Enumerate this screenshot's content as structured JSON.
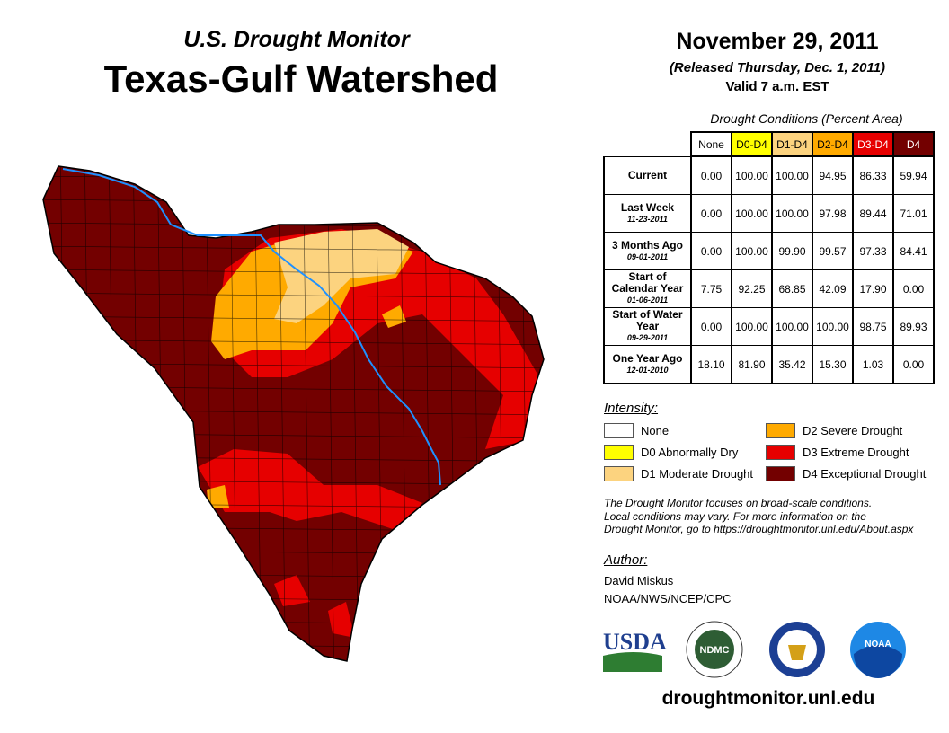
{
  "header": {
    "subtitle": "U.S. Drought Monitor",
    "title": "Texas-Gulf Watershed",
    "date": "November 29, 2011",
    "released": "(Released Thursday, Dec. 1, 2011)",
    "valid": "Valid 7 a.m. EST"
  },
  "table": {
    "caption": "Drought Conditions (Percent Area)",
    "columns": [
      "None",
      "D0-D4",
      "D1-D4",
      "D2-D4",
      "D3-D4",
      "D4"
    ],
    "column_colors": [
      "#ffffff",
      "#ffff00",
      "#fcd37f",
      "#ffaa00",
      "#e60000",
      "#730000"
    ],
    "rows": [
      {
        "label": "Current",
        "date": "",
        "values": [
          "0.00",
          "100.00",
          "100.00",
          "94.95",
          "86.33",
          "59.94"
        ]
      },
      {
        "label": "Last Week",
        "date": "11-23-2011",
        "values": [
          "0.00",
          "100.00",
          "100.00",
          "97.98",
          "89.44",
          "71.01"
        ]
      },
      {
        "label": "3 Months Ago",
        "date": "09-01-2011",
        "values": [
          "0.00",
          "100.00",
          "99.90",
          "99.57",
          "97.33",
          "84.41"
        ]
      },
      {
        "label": "Start of Calendar Year",
        "date": "01-06-2011",
        "values": [
          "7.75",
          "92.25",
          "68.85",
          "42.09",
          "17.90",
          "0.00"
        ]
      },
      {
        "label": "Start of Water Year",
        "date": "09-29-2011",
        "values": [
          "0.00",
          "100.00",
          "100.00",
          "100.00",
          "98.75",
          "89.93"
        ]
      },
      {
        "label": "One Year Ago",
        "date": "12-01-2010",
        "values": [
          "18.10",
          "81.90",
          "35.42",
          "15.30",
          "1.03",
          "0.00"
        ]
      }
    ]
  },
  "legend": {
    "title": "Intensity:",
    "items": [
      {
        "label": "None",
        "color": "#ffffff"
      },
      {
        "label": "D0 Abnormally Dry",
        "color": "#ffff00"
      },
      {
        "label": "D1 Moderate Drought",
        "color": "#fcd37f"
      },
      {
        "label": "D2 Severe Drought",
        "color": "#ffaa00"
      },
      {
        "label": "D3 Extreme Drought",
        "color": "#e60000"
      },
      {
        "label": "D4 Exceptional Drought",
        "color": "#730000"
      }
    ]
  },
  "note": [
    "The Drought Monitor focuses on broad-scale conditions.",
    "Local conditions may vary. For more information on the",
    "Drought Monitor, go to https://droughtmonitor.unl.edu/About.aspx"
  ],
  "author": {
    "title": "Author:",
    "name": "David Miskus",
    "org": "NOAA/NWS/NCEP/CPC"
  },
  "logos": [
    "USDA",
    "NDMC",
    "NOAA"
  ],
  "url": "droughtmonitor.unl.edu"
}
